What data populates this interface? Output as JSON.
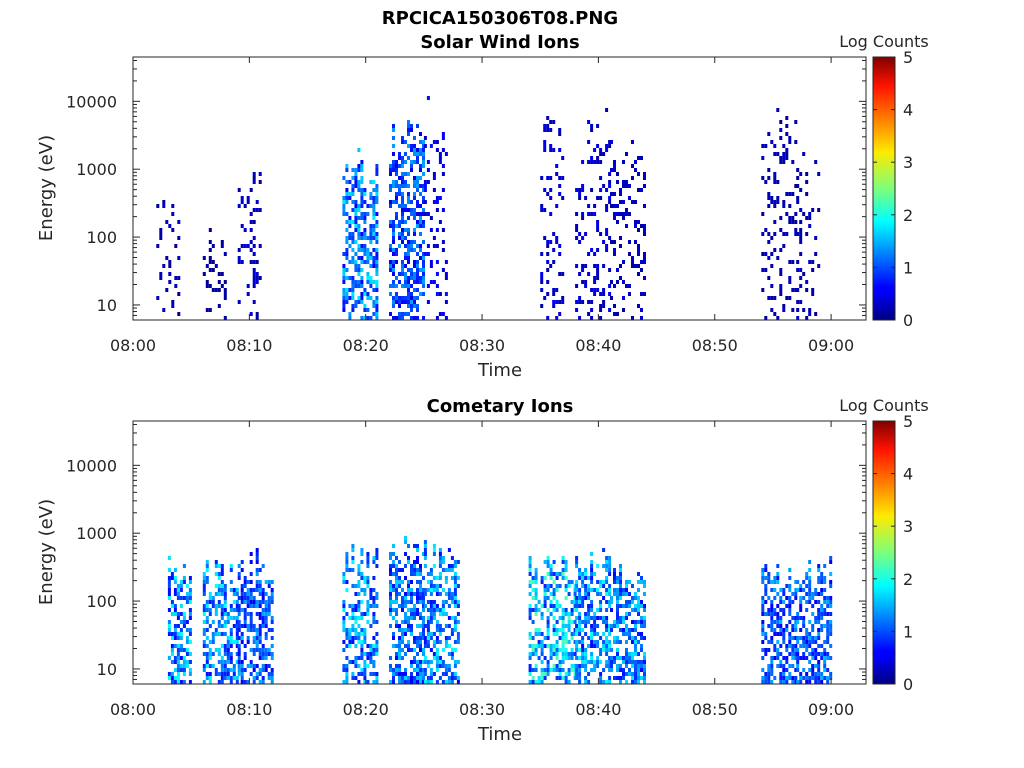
{
  "figure_title": "RPCICA150306T08.PNG",
  "chart_data": [
    {
      "type": "heatmap",
      "title": "Solar Wind Ions",
      "xlabel": "Time",
      "ylabel": "Energy (eV)",
      "x_ticks": [
        "08:00",
        "08:10",
        "08:20",
        "08:30",
        "08:40",
        "08:50",
        "09:00"
      ],
      "xlim": [
        "08:00",
        "09:03"
      ],
      "y_scale": "log",
      "y_ticks": [
        10,
        100,
        1000,
        10000
      ],
      "ylim": [
        6,
        45000
      ],
      "colorbar": {
        "label": "Log Counts",
        "ticks": [
          0,
          1,
          2,
          3,
          4,
          5
        ],
        "range": [
          0,
          5
        ],
        "colormap": "jet"
      },
      "bursts": [
        {
          "start": "08:02",
          "end": "08:04",
          "energy_max": 1100,
          "level": 0.3
        },
        {
          "start": "08:06",
          "end": "08:08",
          "energy_max": 200,
          "level": 0.2
        },
        {
          "start": "08:09",
          "end": "08:11",
          "energy_max": 1800,
          "level": 0.4
        },
        {
          "start": "08:18",
          "end": "08:21",
          "energy_max": 2200,
          "level": 1.5
        },
        {
          "start": "08:22",
          "end": "08:25",
          "energy_max": 7500,
          "level": 1.2
        },
        {
          "start": "08:25",
          "end": "08:27",
          "energy_max": 15000,
          "level": 0.6
        },
        {
          "start": "08:35",
          "end": "08:37",
          "energy_max": 12000,
          "level": 0.5
        },
        {
          "start": "08:38",
          "end": "08:41",
          "energy_max": 13500,
          "level": 0.5
        },
        {
          "start": "08:41",
          "end": "08:44",
          "energy_max": 8000,
          "level": 0.4
        },
        {
          "start": "08:54",
          "end": "08:57",
          "energy_max": 11000,
          "level": 0.3
        },
        {
          "start": "08:57",
          "end": "08:59",
          "energy_max": 5500,
          "level": 0.3
        }
      ]
    },
    {
      "type": "heatmap",
      "title": "Cometary Ions",
      "xlabel": "Time",
      "ylabel": "Energy (eV)",
      "x_ticks": [
        "08:00",
        "08:10",
        "08:20",
        "08:30",
        "08:40",
        "08:50",
        "09:00"
      ],
      "xlim": [
        "08:00",
        "09:03"
      ],
      "y_scale": "log",
      "y_ticks": [
        10,
        100,
        1000,
        10000
      ],
      "ylim": [
        6,
        45000
      ],
      "colorbar": {
        "label": "Log Counts",
        "ticks": [
          0,
          1,
          2,
          3,
          4,
          5
        ],
        "range": [
          0,
          5
        ],
        "colormap": "jet"
      },
      "bursts": [
        {
          "start": "08:03",
          "end": "08:05",
          "energy_max": 550,
          "level": 1.6
        },
        {
          "start": "08:06",
          "end": "08:09",
          "energy_max": 500,
          "level": 1.6
        },
        {
          "start": "08:09",
          "end": "08:12",
          "energy_max": 650,
          "level": 1.3
        },
        {
          "start": "08:18",
          "end": "08:21",
          "energy_max": 900,
          "level": 1.6
        },
        {
          "start": "08:22",
          "end": "08:25",
          "energy_max": 1300,
          "level": 1.4
        },
        {
          "start": "08:25",
          "end": "08:28",
          "energy_max": 1000,
          "level": 1.6
        },
        {
          "start": "08:34",
          "end": "08:38",
          "energy_max": 600,
          "level": 1.9
        },
        {
          "start": "08:38",
          "end": "08:41",
          "energy_max": 650,
          "level": 1.6
        },
        {
          "start": "08:41",
          "end": "08:44",
          "energy_max": 600,
          "level": 1.5
        },
        {
          "start": "08:54",
          "end": "08:57",
          "energy_max": 500,
          "level": 1.3
        },
        {
          "start": "08:57",
          "end": "09:00",
          "energy_max": 500,
          "level": 1.3
        }
      ]
    }
  ]
}
